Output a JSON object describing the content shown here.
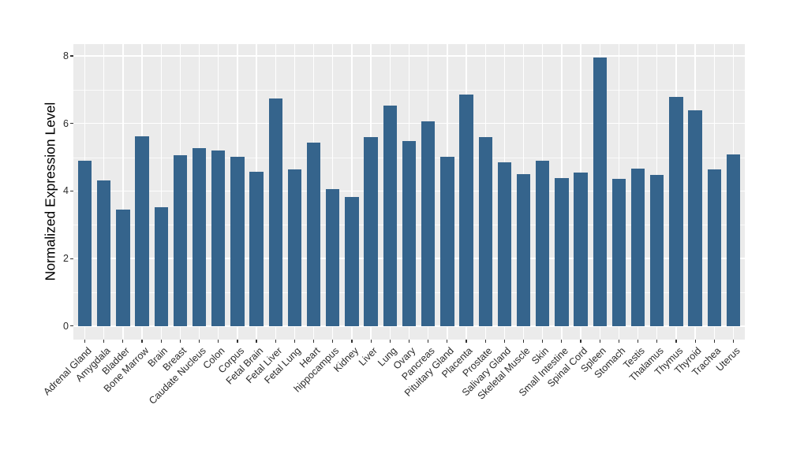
{
  "figure": {
    "colors": {
      "bar_fill": "#35648C",
      "panel_background": "#EBEBEB",
      "gridline": "#FFFFFF",
      "tick_mark": "#333333",
      "axis_text": "#2B2B2B",
      "page_background": "#FFFFFF"
    }
  },
  "chart_data": {
    "type": "bar",
    "title": "",
    "xlabel": "",
    "ylabel": "Normalized Expression Level",
    "ylim": [
      0,
      8
    ],
    "yticks": [
      0,
      2,
      4,
      6,
      8
    ],
    "ytick_labels": [
      "0",
      "2",
      "4",
      "6",
      "8"
    ],
    "minor_yticks": [
      1,
      3,
      5,
      7
    ],
    "grid": true,
    "legend": false,
    "x_label_rotation_deg": 45,
    "categories": [
      "Adrenal Gland",
      "Amygdala",
      "Bladder",
      "Bone Marrow",
      "Brain",
      "Breast",
      "Caudate Nucleus",
      "Colon",
      "Corpus",
      "Fetal Brain",
      "Fetal Liver",
      "Fetal Lung",
      "Heart",
      "hippocampus",
      "Kidney",
      "Liver",
      "Lung",
      "Ovary",
      "Pancreas",
      "Pituitary Gland",
      "Placenta",
      "Prostate",
      "Salivary Gland",
      "Skeletal Muscle",
      "Skin",
      "Small Intestine",
      "Spinal Cord",
      "Spleen",
      "Stomach",
      "Testis",
      "Thalamus",
      "Thymus",
      "Thyroid",
      "Trachea",
      "Uterus"
    ],
    "values": [
      4.9,
      4.31,
      3.45,
      5.62,
      3.52,
      5.05,
      5.28,
      5.2,
      5.02,
      4.57,
      6.73,
      4.64,
      5.43,
      4.05,
      3.83,
      5.6,
      6.53,
      5.48,
      6.06,
      5.01,
      6.85,
      5.6,
      4.86,
      4.51,
      4.9,
      4.38,
      4.54,
      7.95,
      4.37,
      4.66,
      4.47,
      6.78,
      6.4,
      4.63,
      5.08
    ]
  }
}
